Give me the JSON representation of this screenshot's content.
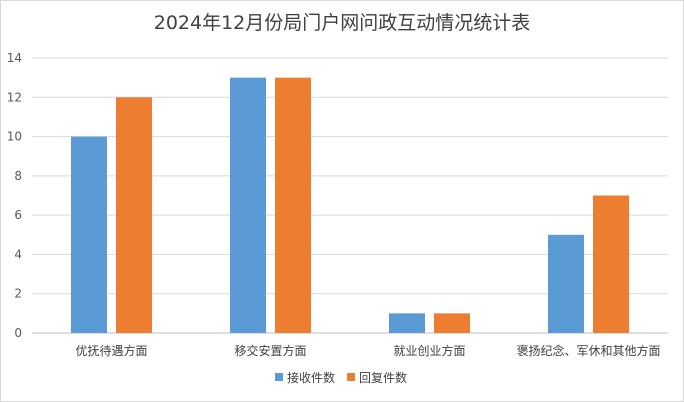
{
  "chart_data": {
    "type": "bar",
    "title": "2024年12月份局门户网问政互动情况统计表",
    "categories": [
      "优抚待遇方面",
      "移交安置方面",
      "就业创业方面",
      "褒扬纪念、军休和其他方面"
    ],
    "series": [
      {
        "name": "接收件数",
        "color": "#5b9bd5",
        "values": [
          10,
          13,
          1,
          5
        ]
      },
      {
        "name": "回复件数",
        "color": "#ed7d31",
        "values": [
          12,
          13,
          1,
          7
        ]
      }
    ],
    "y_ticks": [
      "0",
      "2",
      "4",
      "6",
      "8",
      "10",
      "12",
      "14"
    ],
    "ylim": [
      0,
      14
    ],
    "grid": true,
    "legend_position": "bottom"
  }
}
